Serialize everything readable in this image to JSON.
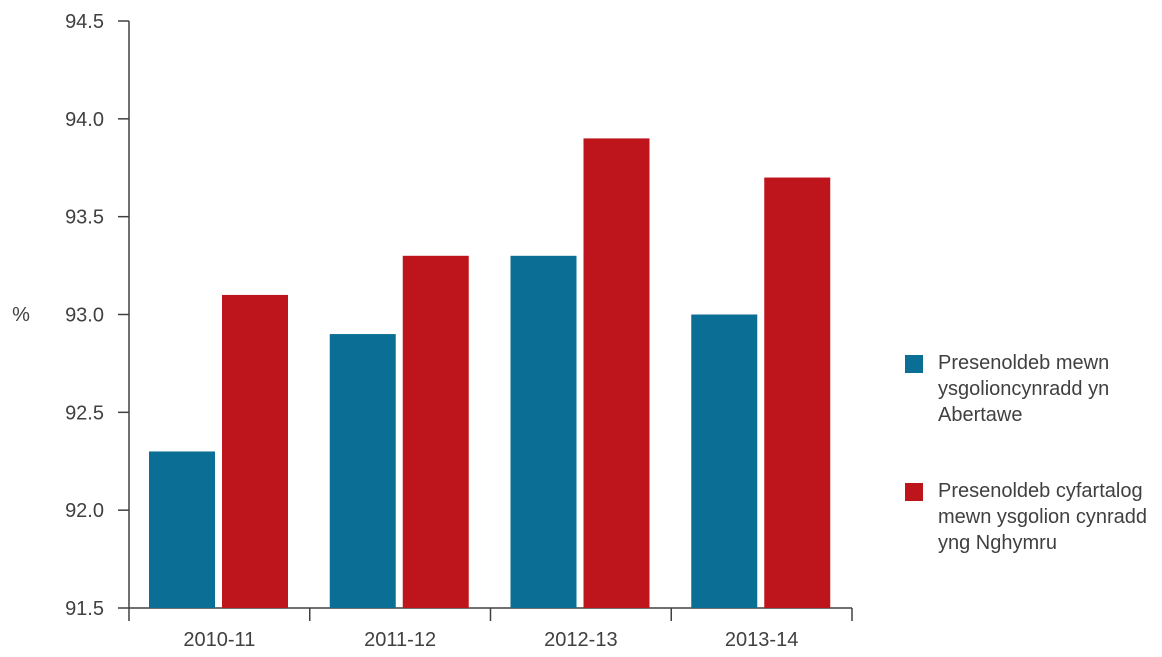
{
  "chart_data": {
    "type": "bar",
    "title": "",
    "xlabel": "",
    "ylabel": "%",
    "ylim": [
      91.5,
      94.5
    ],
    "yticks": [
      "91.5",
      "92.0",
      "92.5",
      "93.0",
      "93.5",
      "94.0",
      "94.5"
    ],
    "categories": [
      "2010-11",
      "2011-12",
      "2012-13",
      "2013-14"
    ],
    "series": [
      {
        "name": "Presenoldeb mewn ysgolioncynradd yn Abertawe",
        "color": "#0b6e94",
        "values": [
          92.3,
          92.9,
          93.3,
          93.0
        ]
      },
      {
        "name": "Presenoldeb cyfartalog mewn ysgolion cynradd yng Nghymru",
        "color": "#be151c",
        "values": [
          93.1,
          93.3,
          93.9,
          93.7
        ]
      }
    ],
    "grid": false,
    "legend": "right"
  }
}
